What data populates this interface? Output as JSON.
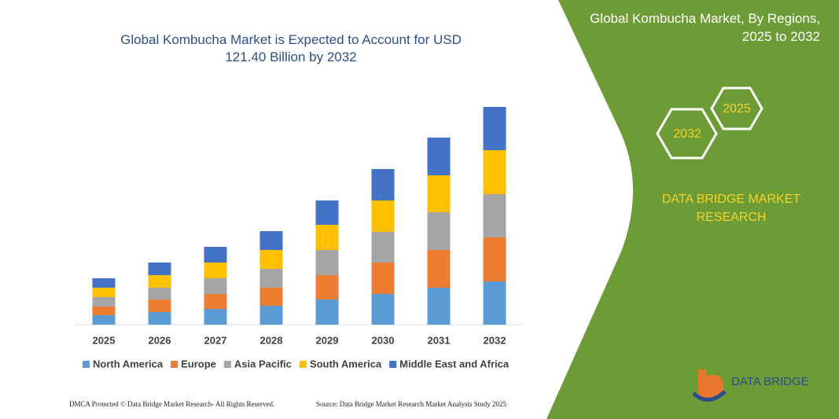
{
  "chart_data": {
    "type": "stacked_bar",
    "title": "Global Kombucha Market is Expected to Account for USD 121.40 Billion by 2032",
    "categories": [
      "2025",
      "2026",
      "2027",
      "2028",
      "2029",
      "2030",
      "2031",
      "2032"
    ],
    "series": [
      {
        "name": "North America",
        "color": "#5b9bd5",
        "values": [
          12,
          16,
          20,
          24,
          32,
          39,
          47,
          55
        ]
      },
      {
        "name": "Europe",
        "color": "#ed7d31",
        "values": [
          11,
          16,
          19,
          23,
          31,
          40,
          48,
          56
        ]
      },
      {
        "name": "Asia Pacific",
        "color": "#a5a5a5",
        "values": [
          12,
          15,
          20,
          24,
          32,
          39,
          48,
          55
        ]
      },
      {
        "name": "South America",
        "color": "#ffc000",
        "values": [
          12,
          16,
          20,
          24,
          32,
          40,
          47,
          56
        ]
      },
      {
        "name": "Middle East and Africa",
        "color": "#4472c4",
        "values": [
          12,
          16,
          20,
          24,
          31,
          40,
          48,
          55
        ]
      }
    ]
  },
  "panel": {
    "title": "Global Kombucha Market, By Regions, 2025 to 2032",
    "hex_labels": [
      "2032",
      "2025"
    ],
    "brand": "DATA BRIDGE MARKET RESEARCH",
    "logo": "DATA BRIDGE"
  },
  "footer": {
    "left": "DMCA Protected © Data Bridge Market Research- All Rights Reserved.",
    "right": "Source: Data Bridge Market Research  Market Analysis Study 2025"
  }
}
